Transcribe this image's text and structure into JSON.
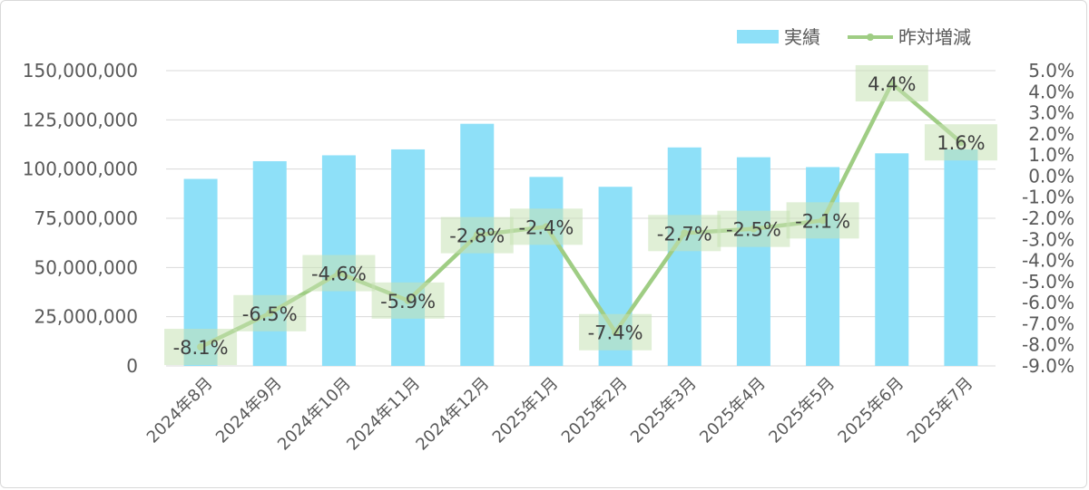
{
  "chart_data": {
    "type": "bar",
    "title": "",
    "xlabel": "",
    "ylabel": "",
    "categories": [
      "2024年8月",
      "2024年9月",
      "2024年10月",
      "2024年11月",
      "2024年12月",
      "2025年1月",
      "2025年2月",
      "2025年3月",
      "2025年4月",
      "2025年5月",
      "2025年6月",
      "2025年7月"
    ],
    "series": [
      {
        "name": "実績",
        "type": "bar",
        "axis": "left",
        "color": "#8ee0f8",
        "values": [
          95000000,
          104000000,
          107000000,
          110000000,
          123000000,
          96000000,
          91000000,
          111000000,
          106000000,
          101000000,
          108000000,
          110000000
        ]
      },
      {
        "name": "昨対増減",
        "type": "line",
        "axis": "right",
        "color": "#9fcd84",
        "values": [
          -8.1,
          -6.5,
          -4.6,
          -5.9,
          -2.8,
          -2.4,
          -7.4,
          -2.7,
          -2.5,
          -2.1,
          4.4,
          1.6
        ],
        "data_labels": [
          "-8.1%",
          "-6.5%",
          "-4.6%",
          "-5.9%",
          "-2.8%",
          "-2.4%",
          "-7.4%",
          "-2.7%",
          "-2.5%",
          "-2.1%",
          "4.4%",
          "1.6%"
        ]
      }
    ],
    "y_left": {
      "min": 0,
      "max": 150000000,
      "ticks": [
        0,
        25000000,
        50000000,
        75000000,
        100000000,
        125000000,
        150000000
      ],
      "tick_labels": [
        "0",
        "25,000,000",
        "50,000,000",
        "75,000,000",
        "100,000,000",
        "125,000,000",
        "150,000,000"
      ]
    },
    "y_right": {
      "min": -9.0,
      "max": 5.0,
      "ticks": [
        5,
        4,
        3,
        2,
        1,
        0,
        -1,
        -2,
        -3,
        -4,
        -5,
        -6,
        -7,
        -8,
        -9
      ],
      "tick_labels": [
        "5.0%",
        "4.0%",
        "3.0%",
        "2.0%",
        "1.0%",
        "0.0%",
        "-1.0%",
        "-2.0%",
        "-3.0%",
        "-4.0%",
        "-5.0%",
        "-6.0%",
        "-7.0%",
        "-8.0%",
        "-9.0%"
      ]
    },
    "grid": true,
    "legend": {
      "position": "top-right",
      "entries": [
        "実績",
        "昨対増減"
      ]
    },
    "colors": {
      "grid": "#d9d9d9",
      "tick_text": "#595959",
      "label_bg": "#c7e2b5"
    }
  }
}
